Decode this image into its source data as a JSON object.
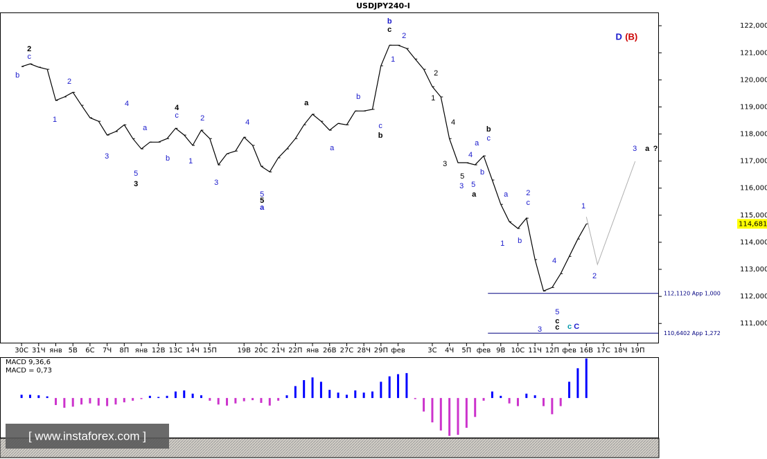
{
  "chart_data": [
    {
      "type": "line",
      "title": "USDJPY240-I",
      "color": "#000000",
      "x": [
        0,
        0.5,
        1,
        1.5,
        2,
        2.5,
        3,
        3.5,
        4,
        4.5,
        5,
        5.5,
        6,
        6.5,
        7,
        7.5,
        8,
        8.5,
        9,
        9.5,
        10,
        10.5,
        11,
        11.5,
        12,
        12.5,
        13,
        13.5,
        14,
        14.5,
        15,
        15.5,
        16,
        16.5,
        17,
        17.5,
        18,
        18.5,
        19,
        19.5,
        20,
        20.5,
        21,
        21.5,
        22,
        22.5,
        23,
        23.5,
        24,
        24.5,
        25,
        25.5,
        26,
        26.5,
        27,
        27.5,
        28,
        28.5,
        29,
        29.5,
        30,
        30.5,
        31,
        31.5,
        32,
        32.5,
        33
      ],
      "values": [
        120.49,
        120.59,
        120.47,
        120.39,
        119.24,
        119.37,
        119.54,
        119.06,
        118.6,
        118.47,
        117.96,
        118.09,
        118.34,
        117.83,
        117.45,
        117.7,
        117.7,
        117.83,
        118.21,
        117.96,
        117.58,
        118.14,
        117.83,
        116.86,
        117.27,
        117.37,
        117.88,
        117.58,
        116.81,
        116.6,
        117.12,
        117.45,
        117.83,
        118.34,
        118.73,
        118.47,
        118.14,
        118.39,
        118.34,
        118.85,
        118.85,
        118.91,
        120.52,
        121.28,
        121.28,
        121.16,
        120.77,
        120.39,
        119.75,
        119.37,
        117.83,
        116.94,
        116.94,
        116.86,
        117.19,
        116.3,
        115.4,
        114.76,
        114.51,
        114.89,
        113.36,
        112.2,
        112.33,
        112.84,
        113.48,
        114.12,
        114.68
      ],
      "forecast": {
        "x": [
          33.0,
          33.65,
          35.85
        ],
        "values": [
          114.94,
          113.18,
          116.99
        ],
        "color": "#b0b0b0"
      },
      "xlim": [
        -1.26,
        37.2
      ],
      "ylim": [
        110.29,
        122.49
      ],
      "xticks": [
        {
          "value": 0,
          "label": "30С"
        },
        {
          "value": 1,
          "label": "31Ч"
        },
        {
          "value": 2,
          "label": "янв"
        },
        {
          "value": 3,
          "label": "5В"
        },
        {
          "value": 4,
          "label": "6С"
        },
        {
          "value": 5,
          "label": "7Ч"
        },
        {
          "value": 6,
          "label": "8П"
        },
        {
          "value": 7,
          "label": "янв"
        },
        {
          "value": 8,
          "label": "12В"
        },
        {
          "value": 9,
          "label": "13С"
        },
        {
          "value": 10,
          "label": "14Ч"
        },
        {
          "value": 11,
          "label": "15П"
        },
        {
          "value": 13,
          "label": "19В"
        },
        {
          "value": 14,
          "label": "20С"
        },
        {
          "value": 15,
          "label": "21Ч"
        },
        {
          "value": 16,
          "label": "22П"
        },
        {
          "value": 17,
          "label": "янв"
        },
        {
          "value": 18,
          "label": "26В"
        },
        {
          "value": 19,
          "label": "27С"
        },
        {
          "value": 20,
          "label": "28Ч"
        },
        {
          "value": 21,
          "label": "29П"
        },
        {
          "value": 22,
          "label": "фев"
        },
        {
          "value": 24,
          "label": "3С"
        },
        {
          "value": 25,
          "label": "4Ч"
        },
        {
          "value": 26,
          "label": "5П"
        },
        {
          "value": 27,
          "label": "фев"
        },
        {
          "value": 28,
          "label": "9В"
        },
        {
          "value": 29,
          "label": "10С"
        },
        {
          "value": 30,
          "label": "11Ч"
        },
        {
          "value": 31,
          "label": "12П"
        },
        {
          "value": 32,
          "label": "фев"
        },
        {
          "value": 33,
          "label": "16В"
        },
        {
          "value": 34,
          "label": "17С"
        },
        {
          "value": 35,
          "label": "18Ч"
        },
        {
          "value": 36,
          "label": "19П"
        }
      ],
      "yticks": [
        {
          "value": 111,
          "label": "111,000"
        },
        {
          "value": 112,
          "label": "112,000"
        },
        {
          "value": 113,
          "label": "113,000"
        },
        {
          "value": 114,
          "label": "114,000"
        },
        {
          "value": 115,
          "label": "115,000"
        },
        {
          "value": 116,
          "label": "116,000"
        },
        {
          "value": 117,
          "label": "117,000"
        },
        {
          "value": 118,
          "label": "118,000"
        },
        {
          "value": 119,
          "label": "119,000"
        },
        {
          "value": 120,
          "label": "120,000"
        },
        {
          "value": 121,
          "label": "121,000"
        },
        {
          "value": 122,
          "label": "122,000"
        }
      ],
      "last_price": {
        "value": 114.681,
        "label": "114,681",
        "color": "#ffff00"
      },
      "levels": [
        {
          "value": 112.112,
          "label": "112,1120 App 1,000",
          "x_start": 27.25,
          "color": "#000080"
        },
        {
          "value": 110.6402,
          "label": "110,6402 App 1,272",
          "x_start": 27.25,
          "color": "#000080"
        }
      ],
      "annotations": [
        {
          "text": "2",
          "x": 0.45,
          "y": 121.13,
          "color": "#000000",
          "bold": true
        },
        {
          "text": "c",
          "x": 0.45,
          "y": 120.85,
          "color": "#1a1acc"
        },
        {
          "text": "b",
          "x": -0.24,
          "y": 120.16,
          "color": "#1a1acc"
        },
        {
          "text": "1",
          "x": 1.94,
          "y": 118.52,
          "color": "#1a1acc"
        },
        {
          "text": "2",
          "x": 2.79,
          "y": 119.93,
          "color": "#1a1acc"
        },
        {
          "text": "4",
          "x": 6.15,
          "y": 119.11,
          "color": "#1a1acc"
        },
        {
          "text": "3",
          "x": 4.98,
          "y": 117.17,
          "color": "#1a1acc"
        },
        {
          "text": "5",
          "x": 6.68,
          "y": 116.53,
          "color": "#1a1acc"
        },
        {
          "text": "3",
          "x": 6.68,
          "y": 116.14,
          "color": "#000000",
          "bold": true
        },
        {
          "text": "a",
          "x": 7.21,
          "y": 118.21,
          "color": "#1a1acc"
        },
        {
          "text": "4",
          "x": 9.07,
          "y": 118.96,
          "color": "#000000",
          "bold": true
        },
        {
          "text": "c",
          "x": 9.07,
          "y": 118.68,
          "color": "#1a1acc"
        },
        {
          "text": "b",
          "x": 8.54,
          "y": 117.09,
          "color": "#1a1acc"
        },
        {
          "text": "2",
          "x": 10.57,
          "y": 118.57,
          "color": "#1a1acc"
        },
        {
          "text": "1",
          "x": 9.88,
          "y": 116.99,
          "color": "#1a1acc"
        },
        {
          "text": "3",
          "x": 11.38,
          "y": 116.19,
          "color": "#1a1acc"
        },
        {
          "text": "4",
          "x": 13.2,
          "y": 118.42,
          "color": "#1a1acc"
        },
        {
          "text": "5",
          "x": 14.05,
          "y": 115.76,
          "color": "#1a1acc"
        },
        {
          "text": "5",
          "x": 14.05,
          "y": 115.53,
          "color": "#000000",
          "bold": true
        },
        {
          "text": "a",
          "x": 14.05,
          "y": 115.27,
          "color": "#1a1acc",
          "bold": true
        },
        {
          "text": "a",
          "x": 16.64,
          "y": 119.14,
          "color": "#000000",
          "bold": true
        },
        {
          "text": "a",
          "x": 18.14,
          "y": 117.47,
          "color": "#1a1acc"
        },
        {
          "text": "b",
          "x": 19.68,
          "y": 119.37,
          "color": "#1a1acc"
        },
        {
          "text": "c",
          "x": 20.97,
          "y": 118.29,
          "color": "#1a1acc"
        },
        {
          "text": "b",
          "x": 20.97,
          "y": 117.93,
          "color": "#000000",
          "bold": true
        },
        {
          "text": "b",
          "x": 21.5,
          "y": 122.15,
          "color": "#1a1acc",
          "bold": true
        },
        {
          "text": "c",
          "x": 21.5,
          "y": 121.85,
          "color": "#000000",
          "bold": true
        },
        {
          "text": "2",
          "x": 22.35,
          "y": 121.62,
          "color": "#1a1acc"
        },
        {
          "text": "1",
          "x": 21.7,
          "y": 120.75,
          "color": "#1a1acc"
        },
        {
          "text": "2",
          "x": 24.21,
          "y": 120.24,
          "color": "#000000"
        },
        {
          "text": "1",
          "x": 24.05,
          "y": 119.31,
          "color": "#000000"
        },
        {
          "text": "4",
          "x": 25.22,
          "y": 118.42,
          "color": "#000000"
        },
        {
          "text": "3",
          "x": 24.74,
          "y": 116.88,
          "color": "#000000"
        },
        {
          "text": "4",
          "x": 26.23,
          "y": 117.22,
          "color": "#1a1acc"
        },
        {
          "text": "a",
          "x": 26.6,
          "y": 117.65,
          "color": "#1a1acc"
        },
        {
          "text": "b",
          "x": 27.29,
          "y": 118.16,
          "color": "#000000",
          "bold": true
        },
        {
          "text": "c",
          "x": 27.29,
          "y": 117.83,
          "color": "#1a1acc"
        },
        {
          "text": "5",
          "x": 25.75,
          "y": 116.42,
          "color": "#000000"
        },
        {
          "text": "3",
          "x": 25.71,
          "y": 116.07,
          "color": "#1a1acc"
        },
        {
          "text": "5",
          "x": 26.4,
          "y": 116.12,
          "color": "#1a1acc"
        },
        {
          "text": "b",
          "x": 26.92,
          "y": 116.58,
          "color": "#1a1acc"
        },
        {
          "text": "a",
          "x": 26.44,
          "y": 115.76,
          "color": "#000000",
          "bold": true
        },
        {
          "text": "a",
          "x": 28.3,
          "y": 115.76,
          "color": "#1a1acc"
        },
        {
          "text": "2",
          "x": 29.6,
          "y": 115.81,
          "color": "#1a1acc"
        },
        {
          "text": "c",
          "x": 29.6,
          "y": 115.45,
          "color": "#1a1acc"
        },
        {
          "text": "1",
          "x": 28.1,
          "y": 113.94,
          "color": "#1a1acc"
        },
        {
          "text": "b",
          "x": 29.11,
          "y": 114.05,
          "color": "#1a1acc"
        },
        {
          "text": "4",
          "x": 31.13,
          "y": 113.3,
          "color": "#1a1acc"
        },
        {
          "text": "5",
          "x": 31.3,
          "y": 111.41,
          "color": "#1a1acc"
        },
        {
          "text": "c",
          "x": 31.3,
          "y": 111.08,
          "color": "#000000",
          "bold": true
        },
        {
          "text": "c",
          "x": 31.3,
          "y": 110.85,
          "color": "#000000",
          "bold": true
        },
        {
          "text": "3",
          "x": 30.28,
          "y": 110.77,
          "color": "#1a1acc"
        },
        {
          "text": "c",
          "x": 32.02,
          "y": 110.87,
          "color": "#0099aa",
          "bold": true
        },
        {
          "text": "C",
          "x": 32.43,
          "y": 110.87,
          "color": "#1a1acc",
          "bold": true
        },
        {
          "text": "1",
          "x": 32.83,
          "y": 115.32,
          "color": "#1a1acc"
        },
        {
          "text": "2",
          "x": 33.48,
          "y": 112.74,
          "color": "#1a1acc"
        },
        {
          "text": "3",
          "x": 35.83,
          "y": 117.45,
          "color": "#1a1acc"
        },
        {
          "text": "a",
          "x": 36.56,
          "y": 117.45,
          "color": "#000000",
          "bold": true
        },
        {
          "text": "?",
          "x": 37.04,
          "y": 117.45,
          "color": "#000000",
          "bold": true
        },
        {
          "text": "D",
          "x": 34.9,
          "y": 121.57,
          "color": "#1a1acc",
          "bold": true
        },
        {
          "text": "(B)",
          "x": 35.63,
          "y": 121.57,
          "color": "#cc0000",
          "bold": true
        }
      ]
    },
    {
      "type": "bar",
      "title": "MACD 9,36,6",
      "subtitle": "MACD = 0,73",
      "positive_color": "#0000ff",
      "negative_color": "#cc33cc",
      "x": [
        0,
        0.5,
        1,
        1.5,
        2,
        2.5,
        3,
        3.5,
        4,
        4.5,
        5,
        5.5,
        6,
        6.5,
        7,
        7.5,
        8,
        8.5,
        9,
        9.5,
        10,
        10.5,
        11,
        11.5,
        12,
        12.5,
        13,
        13.5,
        14,
        14.5,
        15,
        15.5,
        16,
        16.5,
        17,
        17.5,
        18,
        18.5,
        19,
        19.5,
        20,
        20.5,
        21,
        21.5,
        22,
        22.5,
        23,
        23.5,
        24,
        24.5,
        25,
        25.5,
        26,
        26.5,
        27,
        27.5,
        28,
        28.5,
        29,
        29.5,
        30,
        30.5,
        31,
        31.5,
        32,
        32.5,
        33
      ],
      "values": [
        0.06,
        0.06,
        0.05,
        0.03,
        -0.13,
        -0.18,
        -0.16,
        -0.12,
        -0.1,
        -0.14,
        -0.15,
        -0.12,
        -0.08,
        -0.05,
        -0.02,
        0.04,
        0.02,
        0.04,
        0.12,
        0.14,
        0.08,
        0.05,
        -0.05,
        -0.12,
        -0.14,
        -0.1,
        -0.06,
        -0.04,
        -0.09,
        -0.14,
        -0.05,
        0.05,
        0.22,
        0.33,
        0.38,
        0.3,
        0.15,
        0.1,
        0.06,
        0.14,
        0.1,
        0.12,
        0.3,
        0.4,
        0.44,
        0.46,
        -0.02,
        -0.25,
        -0.45,
        -0.6,
        -0.7,
        -0.68,
        -0.55,
        -0.35,
        -0.05,
        0.12,
        0.04,
        -0.1,
        -0.15,
        0.08,
        0.05,
        -0.15,
        -0.3,
        -0.15,
        0.3,
        0.55,
        0.73
      ],
      "xlim": [
        -1.26,
        37.2
      ],
      "ylim": [
        -0.73,
        0.74
      ]
    }
  ],
  "watermark": "[ www.instaforex.com ]"
}
